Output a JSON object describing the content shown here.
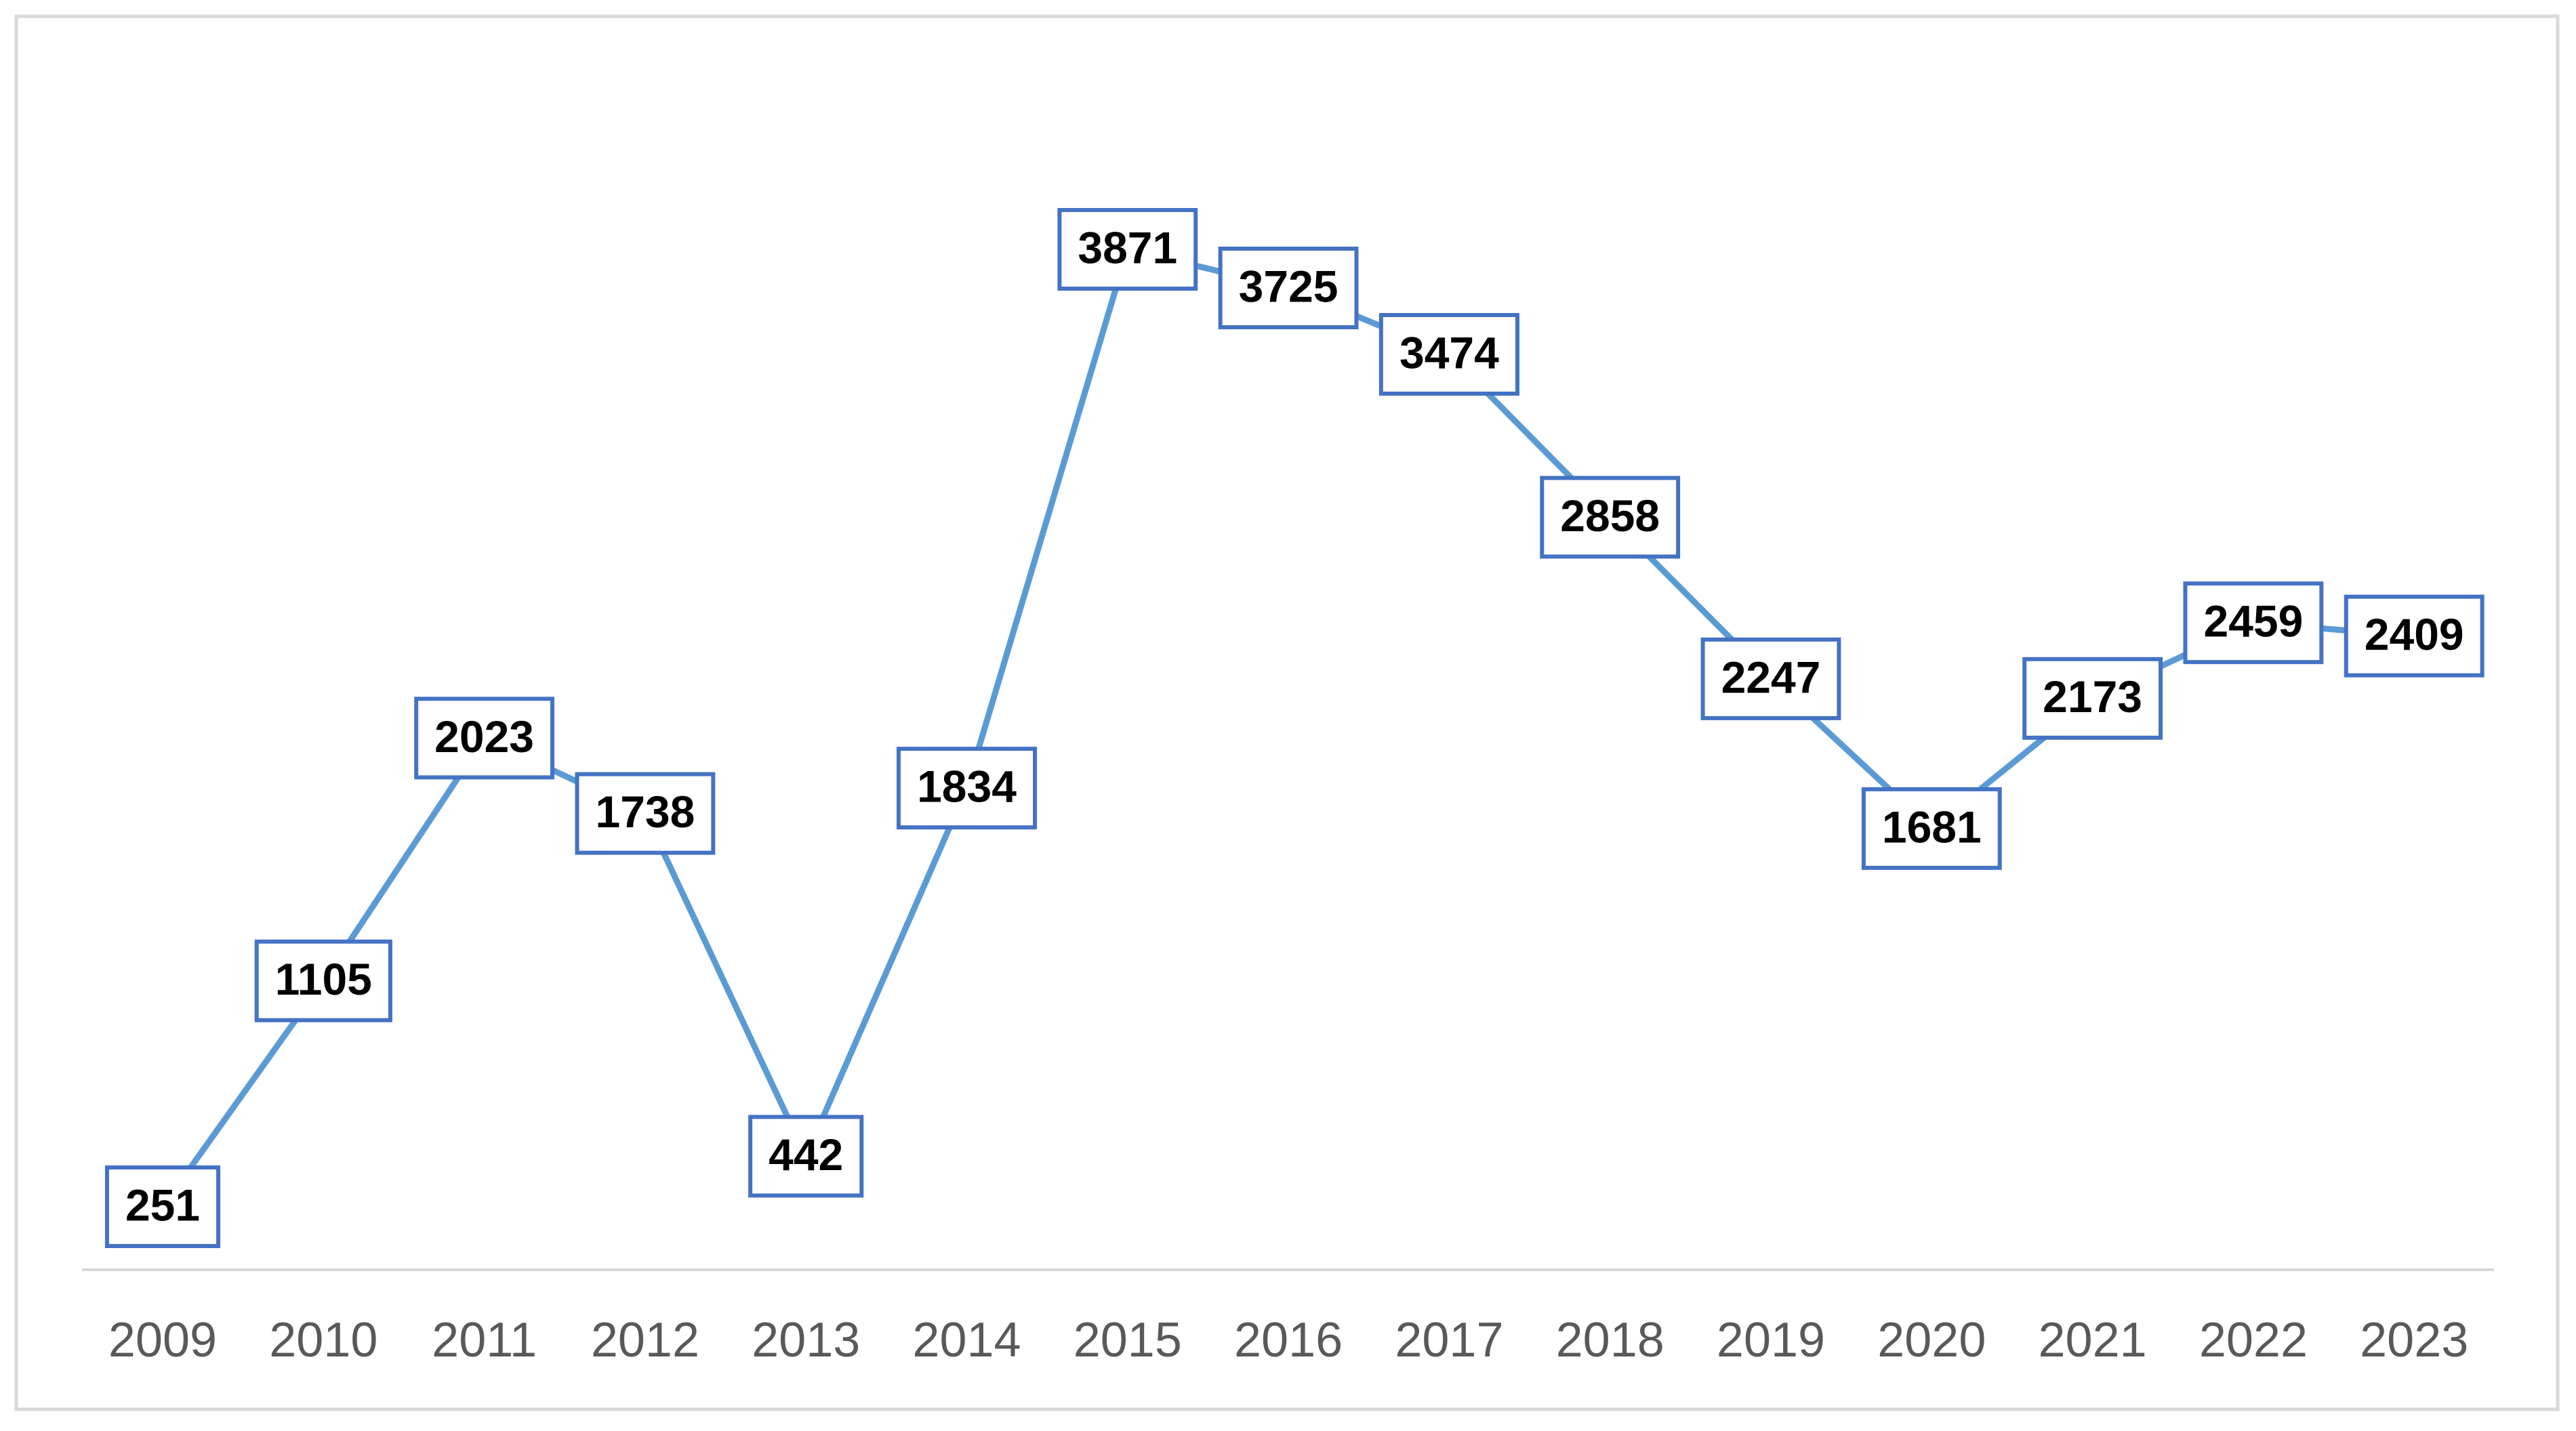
{
  "chart_data": {
    "type": "line",
    "categories": [
      "2009",
      "2010",
      "2011",
      "2012",
      "2013",
      "2014",
      "2015",
      "2016",
      "2017",
      "2018",
      "2019",
      "2020",
      "2021",
      "2022",
      "2023"
    ],
    "values": [
      251,
      1105,
      2023,
      1738,
      442,
      1834,
      3871,
      3725,
      3474,
      2858,
      2247,
      1681,
      2173,
      2459,
      2409
    ],
    "color": "#5b9bd5",
    "label_border_color": "#4472c4"
  }
}
